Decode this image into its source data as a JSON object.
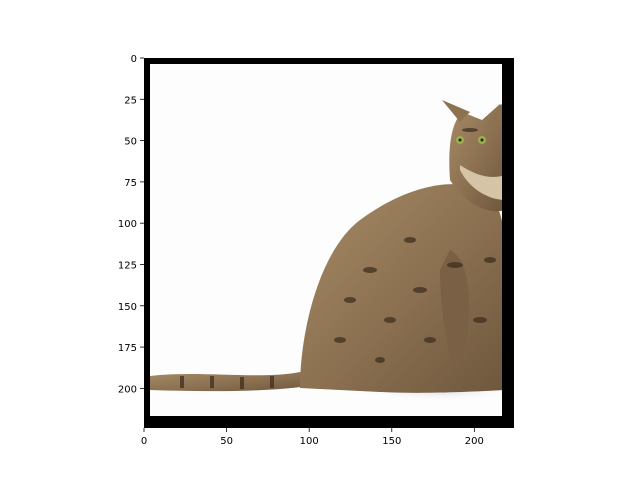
{
  "figure": {
    "x_ticks": [
      "0",
      "50",
      "100",
      "150",
      "200"
    ],
    "y_ticks": [
      "0",
      "25",
      "50",
      "75",
      "100",
      "125",
      "150",
      "175",
      "200"
    ],
    "image_subject": "tabby cat sitting on white background",
    "frame_color": "#000000",
    "background_color": "#ffffff"
  }
}
